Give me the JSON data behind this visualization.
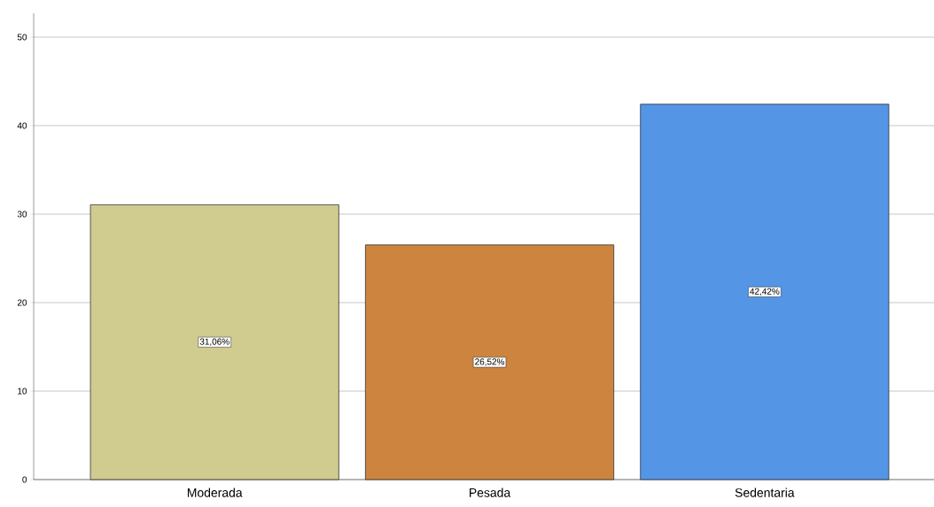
{
  "chart_data": {
    "type": "bar",
    "categories": [
      "Moderada",
      "Pesada",
      "Sedentaria"
    ],
    "values": [
      31.06,
      26.52,
      42.42
    ],
    "colors": [
      "#d0cb8e",
      "#cc843f",
      "#5495e6"
    ],
    "value_labels": [
      "31,06%",
      "26,52%",
      "42,42%"
    ],
    "ylim": [
      0,
      52.7
    ],
    "yticks": [
      0,
      10,
      20,
      30,
      40,
      50
    ],
    "grid": "y"
  }
}
